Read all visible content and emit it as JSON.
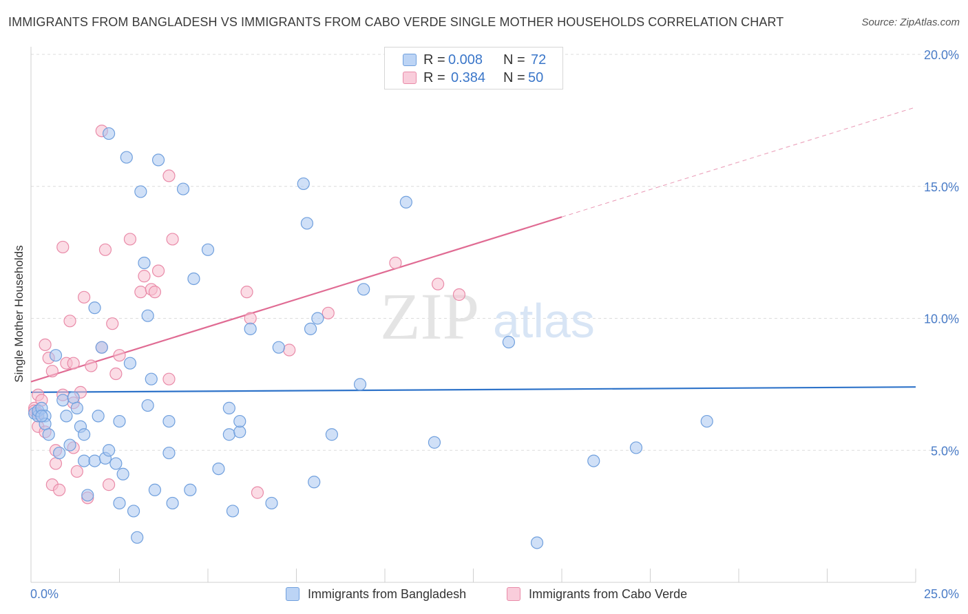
{
  "header": {
    "title": "IMMIGRANTS FROM BANGLADESH VS IMMIGRANTS FROM CABO VERDE SINGLE MOTHER HOUSEHOLDS CORRELATION CHART",
    "source": "Source: ZipAtlas.com"
  },
  "watermark": {
    "zip": "ZIP",
    "atlas": "atlas"
  },
  "stats": [
    {
      "r_label": "R =",
      "r_value": "0.008",
      "n_label": "N =",
      "n_value": "72",
      "color": "#9dbff0"
    },
    {
      "r_label": "R =",
      "r_value": "0.384",
      "n_label": "N =",
      "n_value": "50",
      "color": "#f5b3c8"
    }
  ],
  "legend": [
    {
      "label": "Immigrants from Bangladesh",
      "color": "#9dbff0"
    },
    {
      "label": "Immigrants from Cabo Verde",
      "color": "#f5b3c8"
    }
  ],
  "colors": {
    "blue_fill": "#a9c7f0",
    "blue_stroke": "#6f9fdd",
    "blue_line": "#2e73c9",
    "pink_fill": "#f7bfd0",
    "pink_stroke": "#e98aa8",
    "pink_line": "#e06b93",
    "grid": "#dcdcdc",
    "axis_text": "#4a7cc7"
  },
  "chart_data": {
    "type": "scatter",
    "title": "IMMIGRANTS FROM BANGLADESH VS IMMIGRANTS FROM CABO VERDE SINGLE MOTHER HOUSEHOLDS CORRELATION CHART",
    "xlabel": "",
    "ylabel": "Single Mother Households",
    "xlim": [
      0,
      25
    ],
    "ylim": [
      0,
      20
    ],
    "x_tick_labels": [
      "0.0%",
      "25.0%"
    ],
    "y_ticks": [
      5,
      10,
      15,
      20
    ],
    "y_tick_labels": [
      "5.0%",
      "10.0%",
      "15.0%",
      "20.0%"
    ],
    "grid": true,
    "legend_position": "bottom",
    "series": [
      {
        "name": "Immigrants from Bangladesh",
        "trend": {
          "x": [
            0,
            25
          ],
          "y": [
            7.2,
            7.4
          ],
          "solid_to": 25
        },
        "points": [
          [
            0.1,
            6.4
          ],
          [
            0.2,
            6.3
          ],
          [
            0.2,
            6.5
          ],
          [
            0.3,
            6.6
          ],
          [
            0.4,
            6.3
          ],
          [
            0.4,
            6.0
          ],
          [
            0.5,
            5.6
          ],
          [
            0.7,
            8.6
          ],
          [
            0.8,
            4.9
          ],
          [
            0.9,
            6.9
          ],
          [
            1.0,
            6.3
          ],
          [
            1.1,
            5.2
          ],
          [
            1.2,
            7.0
          ],
          [
            1.3,
            6.6
          ],
          [
            1.4,
            5.9
          ],
          [
            1.5,
            5.6
          ],
          [
            1.5,
            4.6
          ],
          [
            1.6,
            3.3
          ],
          [
            1.8,
            4.6
          ],
          [
            1.8,
            10.4
          ],
          [
            1.9,
            6.3
          ],
          [
            2.0,
            8.9
          ],
          [
            2.1,
            4.7
          ],
          [
            2.2,
            17.0
          ],
          [
            2.2,
            5.0
          ],
          [
            2.4,
            4.5
          ],
          [
            2.5,
            3.0
          ],
          [
            2.5,
            6.1
          ],
          [
            2.6,
            4.1
          ],
          [
            2.7,
            16.1
          ],
          [
            2.8,
            8.3
          ],
          [
            2.9,
            2.7
          ],
          [
            3.0,
            1.7
          ],
          [
            3.1,
            14.8
          ],
          [
            3.2,
            12.1
          ],
          [
            3.3,
            6.7
          ],
          [
            3.3,
            10.1
          ],
          [
            3.4,
            7.7
          ],
          [
            3.5,
            3.5
          ],
          [
            3.6,
            16.0
          ],
          [
            3.9,
            6.1
          ],
          [
            3.9,
            4.9
          ],
          [
            4.0,
            3.0
          ],
          [
            4.3,
            14.9
          ],
          [
            4.5,
            3.5
          ],
          [
            4.6,
            11.5
          ],
          [
            5.0,
            12.6
          ],
          [
            5.3,
            4.3
          ],
          [
            5.6,
            6.6
          ],
          [
            5.6,
            5.6
          ],
          [
            5.7,
            2.7
          ],
          [
            5.9,
            5.7
          ],
          [
            5.9,
            6.1
          ],
          [
            6.2,
            9.6
          ],
          [
            6.8,
            3.0
          ],
          [
            7.0,
            8.9
          ],
          [
            7.7,
            15.1
          ],
          [
            7.8,
            13.6
          ],
          [
            7.9,
            9.6
          ],
          [
            8.0,
            3.8
          ],
          [
            8.1,
            10.0
          ],
          [
            8.5,
            5.6
          ],
          [
            9.3,
            7.5
          ],
          [
            9.4,
            11.1
          ],
          [
            10.6,
            14.4
          ],
          [
            11.4,
            5.3
          ],
          [
            13.5,
            9.1
          ],
          [
            14.3,
            1.5
          ],
          [
            15.9,
            4.6
          ],
          [
            17.1,
            5.1
          ],
          [
            19.1,
            6.1
          ],
          [
            0.3,
            6.3
          ]
        ]
      },
      {
        "name": "Immigrants from Cabo Verde",
        "trend": {
          "x": [
            0,
            25
          ],
          "y": [
            7.6,
            18.0
          ],
          "solid_to": 15
        },
        "points": [
          [
            0.1,
            6.6
          ],
          [
            0.1,
            6.5
          ],
          [
            0.2,
            5.9
          ],
          [
            0.2,
            7.1
          ],
          [
            0.3,
            6.9
          ],
          [
            0.4,
            9.0
          ],
          [
            0.4,
            5.7
          ],
          [
            0.5,
            8.5
          ],
          [
            0.6,
            3.7
          ],
          [
            0.6,
            8.0
          ],
          [
            0.7,
            5.0
          ],
          [
            0.7,
            4.5
          ],
          [
            0.8,
            3.5
          ],
          [
            0.9,
            7.1
          ],
          [
            0.9,
            12.7
          ],
          [
            1.0,
            8.3
          ],
          [
            1.1,
            9.9
          ],
          [
            1.2,
            8.3
          ],
          [
            1.2,
            6.8
          ],
          [
            1.3,
            4.2
          ],
          [
            1.4,
            7.2
          ],
          [
            1.5,
            10.8
          ],
          [
            1.6,
            3.2
          ],
          [
            1.7,
            8.2
          ],
          [
            2.0,
            8.9
          ],
          [
            2.0,
            17.1
          ],
          [
            2.1,
            12.6
          ],
          [
            2.2,
            3.7
          ],
          [
            2.3,
            9.8
          ],
          [
            2.4,
            7.9
          ],
          [
            2.5,
            8.6
          ],
          [
            2.8,
            13.0
          ],
          [
            3.1,
            11.0
          ],
          [
            3.2,
            11.6
          ],
          [
            3.4,
            11.1
          ],
          [
            3.5,
            11.0
          ],
          [
            3.6,
            11.8
          ],
          [
            3.9,
            7.7
          ],
          [
            3.9,
            15.4
          ],
          [
            4.0,
            13.0
          ],
          [
            6.1,
            11.0
          ],
          [
            6.2,
            10.0
          ],
          [
            6.4,
            3.4
          ],
          [
            7.3,
            8.8
          ],
          [
            8.4,
            10.2
          ],
          [
            10.3,
            12.1
          ],
          [
            11.5,
            11.3
          ],
          [
            12.1,
            10.9
          ],
          [
            0.2,
            6.4
          ],
          [
            1.2,
            5.1
          ]
        ]
      }
    ]
  }
}
